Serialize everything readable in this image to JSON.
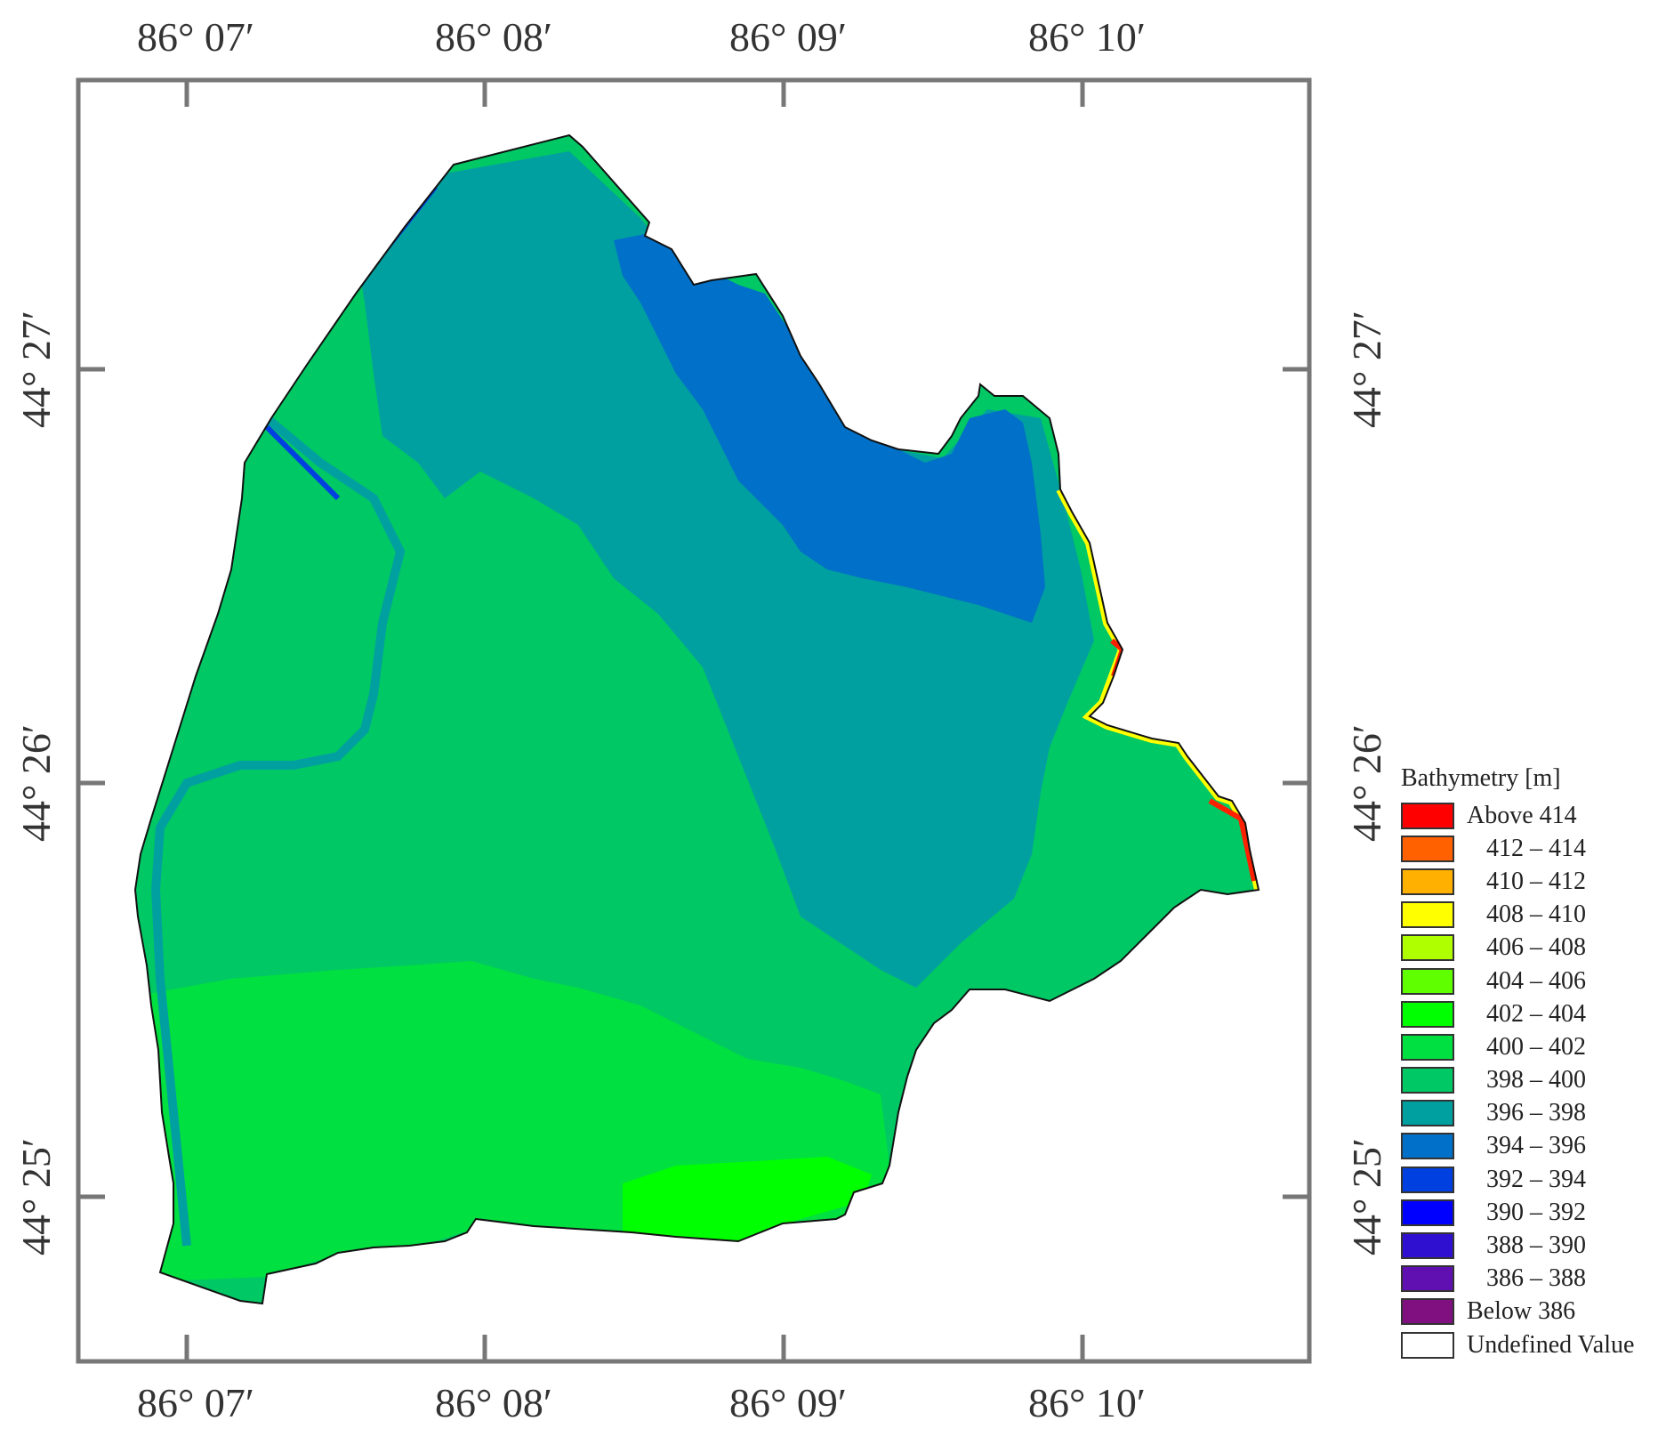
{
  "map": {
    "axes": {
      "longitude_ticks": [
        "86° 07′",
        "86° 08′",
        "86° 09′",
        "86° 10′"
      ],
      "latitude_ticks": [
        "44° 27′",
        "44° 26′",
        "44° 25′"
      ]
    },
    "legend": {
      "title": "Bathymetry [m]",
      "items": [
        {
          "label": "Above 414",
          "color": "#ff0000"
        },
        {
          "label": "412 – 414",
          "color": "#ff6000"
        },
        {
          "label": "410 – 412",
          "color": "#ffb000"
        },
        {
          "label": "408 – 410",
          "color": "#ffff00"
        },
        {
          "label": "406 – 408",
          "color": "#b0ff00"
        },
        {
          "label": "404 – 406",
          "color": "#60ff00"
        },
        {
          "label": "402 – 404",
          "color": "#00ff00"
        },
        {
          "label": "400 – 402",
          "color": "#00e040"
        },
        {
          "label": "398 – 400",
          "color": "#00c864"
        },
        {
          "label": "396 – 398",
          "color": "#00a0a0"
        },
        {
          "label": "394 – 396",
          "color": "#0070c8"
        },
        {
          "label": "392 – 394",
          "color": "#0040e0"
        },
        {
          "label": "390 – 392",
          "color": "#0000ff"
        },
        {
          "label": "388 – 390",
          "color": "#3010d0"
        },
        {
          "label": "386 – 388",
          "color": "#6010b0"
        },
        {
          "label": "Below 386",
          "color": "#801080"
        },
        {
          "label": "Undefined Value",
          "color": "#ffffff"
        }
      ]
    }
  }
}
